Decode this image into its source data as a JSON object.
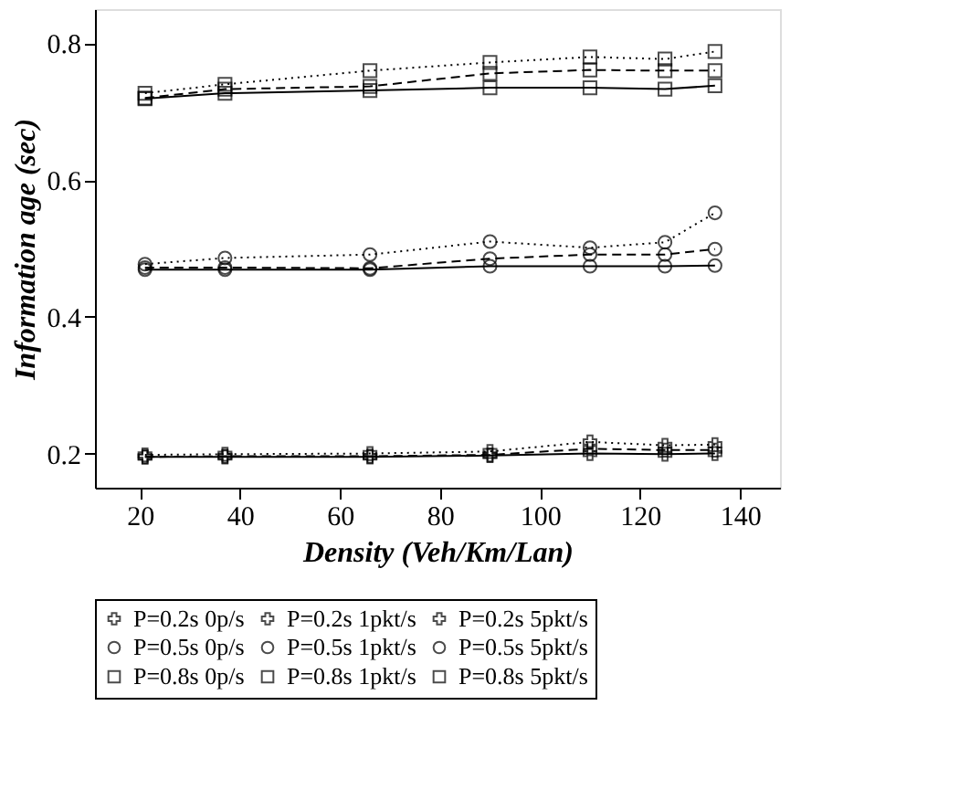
{
  "chart_data": {
    "type": "line",
    "xlabel": "Density (Veh/Km/Lan)",
    "ylabel": "Information age (sec)",
    "x": [
      21,
      37,
      66,
      90,
      110,
      125,
      135
    ],
    "xlim": [
      11,
      148
    ],
    "xticks": [
      20,
      40,
      60,
      80,
      100,
      120,
      140
    ],
    "ylim": [
      0.15,
      0.85
    ],
    "yticks": [
      0.2,
      0.4,
      0.6,
      0.8
    ],
    "grid": false,
    "legend": "bottom",
    "series": [
      {
        "name": "P=0.2s 0p/s",
        "color": "#000000",
        "marker": "cross",
        "line_style": "solid",
        "values": [
          0.195,
          0.195,
          0.195,
          0.197,
          0.2,
          0.199,
          0.2
        ]
      },
      {
        "name": "P=0.2s 1pkt/s",
        "color": "#000000",
        "marker": "cross",
        "line_style": "dashed",
        "values": [
          0.195,
          0.196,
          0.196,
          0.198,
          0.207,
          0.205,
          0.205
        ]
      },
      {
        "name": "P=0.2s 5pkt/s",
        "color": "#000000",
        "marker": "cross",
        "line_style": "dotted",
        "values": [
          0.198,
          0.199,
          0.2,
          0.203,
          0.217,
          0.212,
          0.213
        ]
      },
      {
        "name": "P=0.5s 0p/s",
        "color": "#000000",
        "marker": "circle",
        "line_style": "solid",
        "values": [
          0.469,
          0.469,
          0.469,
          0.474,
          0.474,
          0.474,
          0.475
        ]
      },
      {
        "name": "P=0.5s 1pkt/s",
        "color": "#000000",
        "marker": "circle",
        "line_style": "dashed",
        "values": [
          0.472,
          0.472,
          0.471,
          0.485,
          0.491,
          0.491,
          0.499
        ]
      },
      {
        "name": "P=0.5s 5pkt/s",
        "color": "#000000",
        "marker": "circle",
        "line_style": "dotted",
        "values": [
          0.477,
          0.486,
          0.491,
          0.51,
          0.501,
          0.509,
          0.552
        ]
      },
      {
        "name": "P=0.8s 0p/s",
        "color": "#000000",
        "marker": "square",
        "line_style": "solid",
        "values": [
          0.719,
          0.727,
          0.731,
          0.735,
          0.735,
          0.733,
          0.738
        ]
      },
      {
        "name": "P=0.8s 1pkt/s",
        "color": "#000000",
        "marker": "square",
        "line_style": "dashed",
        "values": [
          0.72,
          0.733,
          0.737,
          0.756,
          0.761,
          0.76,
          0.76
        ]
      },
      {
        "name": "P=0.8s 5pkt/s",
        "color": "#000000",
        "marker": "square",
        "line_style": "dotted",
        "values": [
          0.727,
          0.74,
          0.76,
          0.772,
          0.78,
          0.777,
          0.788
        ]
      }
    ]
  }
}
